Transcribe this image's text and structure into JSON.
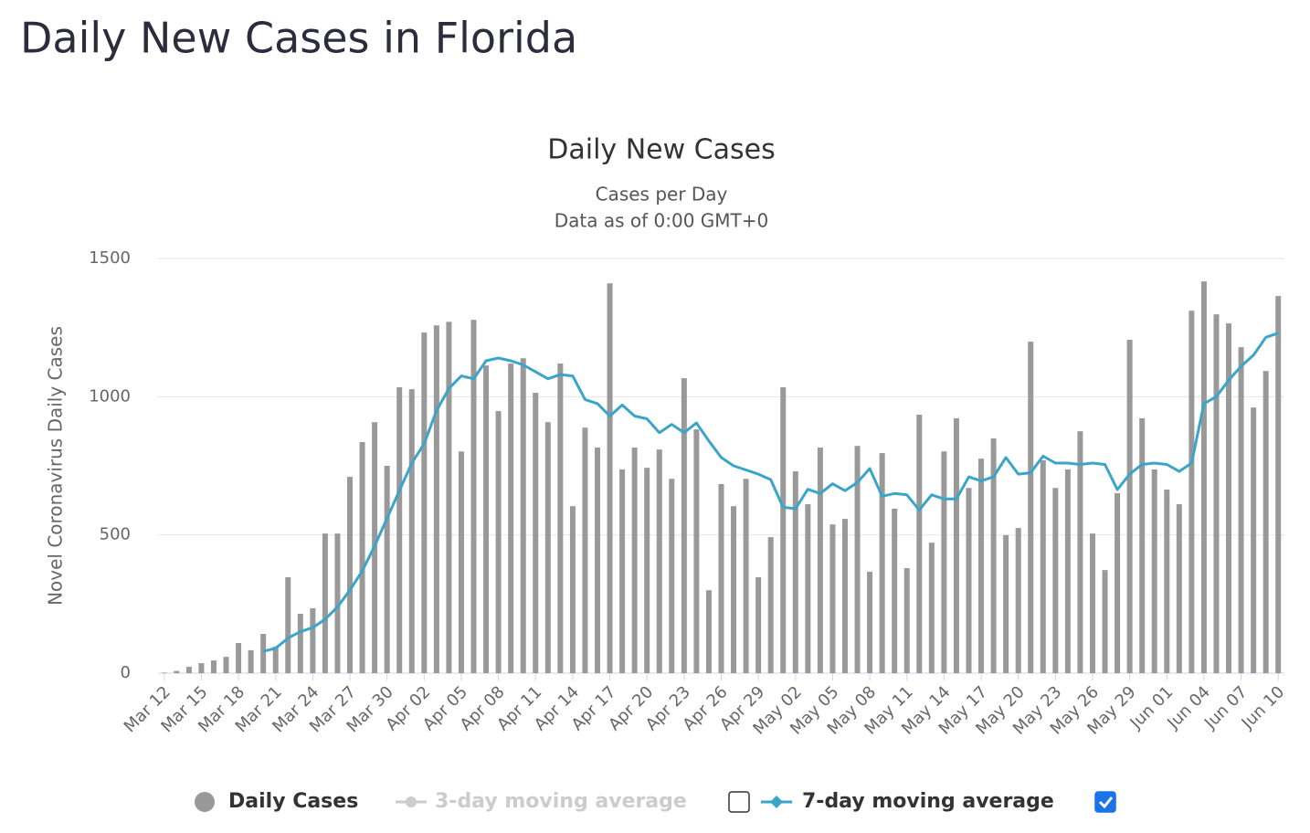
{
  "page_title": "Daily New Cases in Florida",
  "chart_data": {
    "type": "bar",
    "title": "Daily New Cases",
    "subtitle": [
      "Cases per Day",
      "Data as of 0:00 GMT+0"
    ],
    "ylabel": "Novel Coronavirus Daily Cases",
    "ylim": [
      0,
      1500
    ],
    "yticks": [
      0,
      500,
      1000,
      1500
    ],
    "grid": true,
    "categories": [
      "Mar 12",
      null,
      null,
      "Mar 15",
      null,
      null,
      "Mar 18",
      null,
      null,
      "Mar 21",
      null,
      null,
      "Mar 24",
      null,
      null,
      "Mar 27",
      null,
      null,
      "Mar 30",
      null,
      null,
      "Apr 02",
      null,
      null,
      "Apr 05",
      null,
      null,
      "Apr 08",
      null,
      null,
      "Apr 11",
      null,
      null,
      "Apr 14",
      null,
      null,
      "Apr 17",
      null,
      null,
      "Apr 20",
      null,
      null,
      "Apr 23",
      null,
      null,
      "Apr 26",
      null,
      null,
      "Apr 29",
      null,
      null,
      "May 02",
      null,
      null,
      "May 05",
      null,
      null,
      "May 08",
      null,
      null,
      "May 11",
      null,
      null,
      "May 14",
      null,
      null,
      "May 17",
      null,
      null,
      "May 20",
      null,
      null,
      "May 23",
      null,
      null,
      "May 26",
      null,
      null,
      "May 29",
      null,
      null,
      "Jun 01",
      null,
      null,
      "Jun 04",
      null,
      null,
      "Jun 07",
      null,
      null,
      "Jun 10"
    ],
    "series": [
      {
        "name": "Daily Cases",
        "type": "bar",
        "color": "#999999",
        "values": [
          2,
          8,
          23,
          36,
          46,
          59,
          109,
          83,
          142,
          96,
          347,
          215,
          235,
          505,
          505,
          710,
          836,
          908,
          750,
          1034,
          1027,
          1232,
          1258,
          1271,
          802,
          1278,
          1113,
          948,
          1120,
          1139,
          1014,
          908,
          1120,
          604,
          888,
          816,
          1410,
          737,
          816,
          743,
          809,
          703,
          1067,
          882,
          300,
          684,
          604,
          703,
          347,
          492,
          1034,
          730,
          611,
          816,
          538,
          558,
          822,
          367,
          796,
          595,
          380,
          935,
          472,
          802,
          922,
          670,
          776,
          849,
          499,
          525,
          1199,
          770,
          670,
          737,
          875,
          505,
          373,
          651,
          1206,
          922,
          737,
          664,
          611,
          1311,
          1417,
          1298,
          1265,
          1179,
          961,
          1093,
          1364
        ]
      },
      {
        "name": "7-day moving average",
        "type": "line",
        "color": "#3aa5c8",
        "checked": true,
        "values": [
          null,
          null,
          null,
          null,
          null,
          null,
          null,
          null,
          79,
          90,
          127,
          150,
          165,
          195,
          240,
          300,
          370,
          460,
          560,
          660,
          760,
          830,
          950,
          1030,
          1075,
          1065,
          1130,
          1140,
          1130,
          1115,
          1090,
          1065,
          1080,
          1075,
          990,
          975,
          930,
          970,
          930,
          920,
          870,
          900,
          870,
          905,
          840,
          780,
          750,
          735,
          720,
          700,
          600,
          595,
          665,
          650,
          685,
          660,
          690,
          740,
          640,
          650,
          645,
          590,
          645,
          630,
          630,
          710,
          695,
          710,
          780,
          720,
          725,
          785,
          760,
          760,
          755,
          760,
          755,
          664,
          720,
          755,
          760,
          755,
          730,
          760,
          975,
          1000,
          1060,
          1110,
          1150,
          1215,
          1230
        ]
      }
    ],
    "inactive_series": [
      {
        "name": "3-day moving average",
        "color": "#cccccc",
        "checked": false
      }
    ]
  }
}
